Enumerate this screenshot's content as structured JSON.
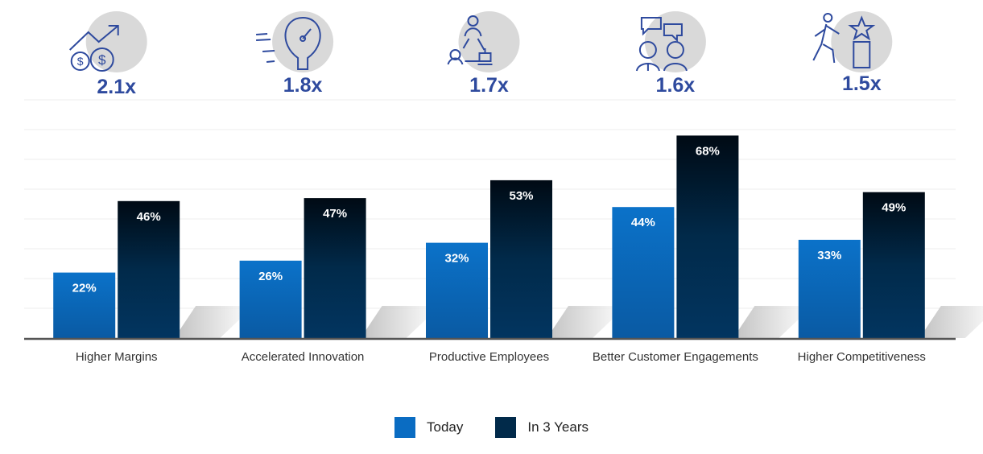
{
  "chart_data": {
    "type": "bar",
    "categories": [
      "Higher Margins",
      "Accelerated Innovation",
      "Productive Employees",
      "Better Customer Engagements",
      "Higher Competitiveness"
    ],
    "series": [
      {
        "name": "Today",
        "values": [
          22,
          26,
          32,
          44,
          33
        ],
        "color": "#0a6cc2"
      },
      {
        "name": "In 3 Years",
        "values": [
          46,
          47,
          53,
          68,
          49
        ],
        "color": "#012a4a"
      }
    ],
    "data_labels": {
      "Today": [
        "22%",
        "26%",
        "32%",
        "44%",
        "33%"
      ],
      "In 3 Years": [
        "46%",
        "47%",
        "53%",
        "68%",
        "49%"
      ]
    },
    "multipliers": [
      "2.1x",
      "1.8x",
      "1.7x",
      "1.6x",
      "1.5x"
    ],
    "icons": [
      "rising-money-icon",
      "lightbulb-icon",
      "people-robot-network-icon",
      "customer-conversation-icon",
      "person-reaching-star-icon"
    ],
    "ylim": [
      0,
      80
    ],
    "grid": true,
    "legend_position": "bottom",
    "accent_color": "#2e4a9e"
  }
}
